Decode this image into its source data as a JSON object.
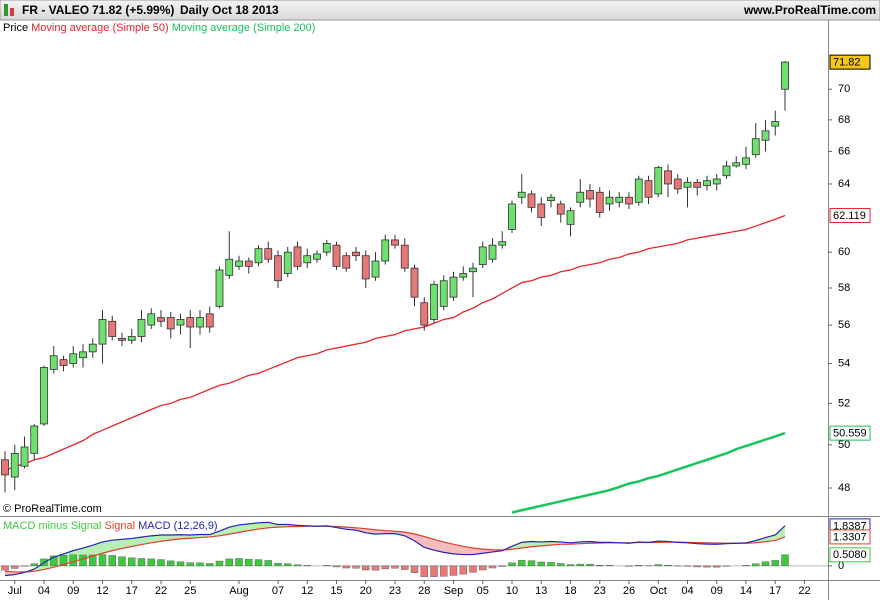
{
  "header": {
    "symbol": "FR - VALEO",
    "quote": "71.82 (+5.99%)",
    "period": "Daily",
    "date": "Oct 18 2013",
    "site": "www.ProRealTime.com"
  },
  "watermark": "© ProRealTime.com",
  "chart_data": [
    {
      "type": "candlestick",
      "legend_label": "Price",
      "log": true,
      "ylim": [
        46.79,
        74.74
      ],
      "yticks": [
        48,
        50,
        52,
        54,
        56,
        58,
        60,
        64,
        66,
        68,
        70
      ],
      "up_color": "#6ee06e",
      "down_color": "#e87878",
      "last_box_color": "#f5c518",
      "categories": [
        null,
        "Jul",
        null,
        null,
        "04",
        null,
        null,
        "09",
        null,
        null,
        "12",
        null,
        null,
        "17",
        null,
        null,
        "22",
        null,
        null,
        "25",
        null,
        null,
        null,
        null,
        "Aug",
        null,
        null,
        null,
        "07",
        null,
        null,
        "12",
        null,
        null,
        "15",
        null,
        null,
        "20",
        null,
        null,
        "23",
        null,
        null,
        "28",
        null,
        null,
        "Sep",
        null,
        null,
        "05",
        null,
        null,
        "10",
        null,
        null,
        "13",
        null,
        null,
        "18",
        null,
        null,
        "23",
        null,
        null,
        "26",
        null,
        null,
        "Oct",
        null,
        null,
        "04",
        null,
        null,
        "09",
        null,
        null,
        "14",
        null,
        null,
        "17",
        null,
        null,
        "22"
      ],
      "open": [
        49.3,
        48.5,
        49.0,
        49.6,
        51.0,
        53.7,
        54.2,
        54.0,
        54.3,
        54.6,
        55.0,
        56.2,
        55.3,
        55.2,
        55.4,
        56.0,
        56.4,
        56.4,
        56.0,
        56.4,
        55.9,
        56.6,
        57.0,
        58.7,
        59.2,
        59.5,
        59.4,
        60.2,
        59.8,
        58.8,
        60.3,
        59.4,
        59.6,
        60.0,
        60.4,
        59.8,
        60.0,
        59.8,
        58.6,
        59.5,
        60.7,
        60.4,
        59.1,
        57.2,
        56.3,
        57.0,
        57.5,
        58.6,
        58.9,
        59.3,
        59.6,
        60.4,
        61.3,
        63.2,
        63.4,
        62.8,
        63.0,
        62.8,
        61.6,
        62.9,
        63.6,
        63.5,
        62.8,
        62.9,
        63.2,
        62.9,
        64.2,
        63.4,
        64.8,
        64.3,
        63.8,
        64.1,
        63.9,
        64.0,
        64.5,
        65.1,
        65.2,
        65.8,
        66.7,
        67.6,
        70.0,
        null,
        null
      ],
      "high": [
        49.7,
        50.0,
        50.4,
        51.0,
        53.9,
        54.9,
        54.4,
        54.9,
        55.0,
        55.3,
        56.8,
        56.5,
        55.6,
        55.8,
        56.8,
        56.9,
        56.8,
        56.7,
        56.6,
        56.8,
        56.8,
        57.0,
        59.2,
        61.2,
        59.8,
        59.7,
        60.4,
        60.6,
        60.1,
        60.3,
        60.6,
        60.2,
        60.1,
        60.7,
        60.6,
        60.0,
        60.3,
        60.1,
        60.0,
        61.0,
        61.0,
        60.8,
        59.3,
        57.5,
        58.4,
        58.7,
        58.9,
        59.2,
        59.4,
        60.6,
        60.8,
        61.2,
        63.0,
        64.6,
        63.6,
        63.2,
        63.4,
        63.0,
        62.6,
        64.3,
        64.0,
        63.8,
        63.6,
        63.5,
        63.5,
        64.5,
        64.5,
        65.1,
        65.2,
        64.6,
        64.4,
        64.3,
        64.5,
        64.6,
        65.4,
        65.7,
        66.3,
        67.8,
        68.0,
        68.6,
        71.9,
        null,
        null
      ],
      "low": [
        47.8,
        47.9,
        48.9,
        49.3,
        50.9,
        53.5,
        53.6,
        53.8,
        53.8,
        54.3,
        54.0,
        55.2,
        54.9,
        55.0,
        55.1,
        55.8,
        55.9,
        55.3,
        55.5,
        54.8,
        55.5,
        55.6,
        56.9,
        58.5,
        59.0,
        58.8,
        59.2,
        59.4,
        58.0,
        58.6,
        59.0,
        59.1,
        59.4,
        59.8,
        59.0,
        58.9,
        59.5,
        58.0,
        58.4,
        59.3,
        60.2,
        58.9,
        57.0,
        55.7,
        56.1,
        56.8,
        57.3,
        58.4,
        57.5,
        59.1,
        59.4,
        60.2,
        61.1,
        62.8,
        62.3,
        61.5,
        62.6,
        61.7,
        60.9,
        62.6,
        62.6,
        62.0,
        62.4,
        62.6,
        62.5,
        62.7,
        62.8,
        63.2,
        63.2,
        63.4,
        62.6,
        63.3,
        63.6,
        63.6,
        64.3,
        65.0,
        64.9,
        65.6,
        66.0,
        67.0,
        68.6,
        null,
        null
      ],
      "close": [
        48.6,
        49.6,
        49.9,
        50.9,
        53.8,
        54.4,
        53.9,
        54.5,
        54.6,
        55.0,
        56.3,
        55.4,
        55.2,
        55.4,
        56.3,
        56.6,
        56.2,
        55.8,
        56.3,
        55.9,
        56.4,
        55.9,
        59.0,
        59.6,
        59.5,
        59.2,
        60.2,
        59.6,
        58.4,
        60.0,
        59.2,
        59.8,
        59.9,
        60.5,
        59.2,
        59.1,
        59.8,
        58.5,
        59.5,
        60.7,
        60.4,
        59.1,
        57.5,
        56.0,
        58.2,
        58.4,
        58.6,
        58.8,
        59.1,
        60.3,
        60.4,
        60.6,
        62.8,
        63.5,
        62.6,
        62.0,
        63.2,
        62.2,
        62.4,
        63.5,
        63.1,
        62.3,
        63.2,
        63.2,
        62.8,
        64.3,
        63.2,
        65.0,
        64.0,
        63.7,
        64.1,
        63.8,
        64.2,
        64.3,
        65.1,
        65.3,
        65.6,
        66.8,
        67.3,
        67.9,
        71.82,
        null,
        null
      ],
      "series": [
        {
          "name": "Moving average (Simple 50)",
          "color": "#e8262b",
          "values": [
            48.8,
            49.0,
            49.1,
            49.3,
            49.4,
            49.6,
            49.8,
            50.0,
            50.2,
            50.5,
            50.7,
            50.9,
            51.1,
            51.3,
            51.5,
            51.7,
            51.9,
            52.0,
            52.2,
            52.3,
            52.5,
            52.7,
            52.9,
            53.0,
            53.2,
            53.4,
            53.5,
            53.7,
            53.9,
            54.1,
            54.3,
            54.4,
            54.5,
            54.7,
            54.8,
            54.9,
            55.0,
            55.1,
            55.3,
            55.4,
            55.5,
            55.7,
            55.8,
            55.9,
            56.1,
            56.3,
            56.4,
            56.7,
            56.9,
            57.2,
            57.4,
            57.7,
            58.0,
            58.3,
            58.4,
            58.6,
            58.7,
            58.9,
            59.0,
            59.2,
            59.3,
            59.4,
            59.6,
            59.7,
            59.9,
            60.0,
            60.2,
            60.3,
            60.4,
            60.5,
            60.7,
            60.8,
            60.9,
            61.0,
            61.1,
            61.2,
            61.3,
            61.5,
            61.7,
            61.9,
            62.119,
            null,
            null
          ]
        },
        {
          "name": "Moving average (Simple 200)",
          "color": "#17c45c",
          "values": [
            null,
            null,
            null,
            null,
            null,
            null,
            null,
            null,
            null,
            null,
            null,
            null,
            null,
            null,
            null,
            null,
            null,
            null,
            null,
            null,
            null,
            null,
            null,
            null,
            null,
            null,
            null,
            null,
            null,
            null,
            null,
            null,
            null,
            null,
            null,
            null,
            null,
            null,
            null,
            null,
            null,
            null,
            null,
            null,
            null,
            null,
            null,
            null,
            null,
            null,
            null,
            null,
            46.9,
            47.0,
            47.1,
            47.2,
            47.3,
            47.4,
            47.5,
            47.6,
            47.7,
            47.8,
            47.9,
            48.05,
            48.2,
            48.3,
            48.45,
            48.55,
            48.7,
            48.85,
            49.0,
            49.15,
            49.3,
            49.45,
            49.6,
            49.8,
            49.95,
            50.1,
            50.25,
            50.4,
            50.559,
            null,
            null
          ]
        }
      ]
    },
    {
      "type": "macd",
      "ylim": [
        -0.65,
        2.2
      ],
      "yticks": [
        0
      ],
      "fill_up_color": "#b9efb2",
      "fill_down_color": "#f4bcbc",
      "down_color": "#e87878",
      "series": [
        {
          "name": "MACD minus Signal",
          "color": "#3ec83e",
          "value_label": "0.5080",
          "values": [
            -0.2,
            -0.12,
            -0.02,
            0.1,
            0.32,
            0.46,
            0.49,
            0.51,
            0.5,
            0.5,
            0.52,
            0.48,
            0.42,
            0.37,
            0.34,
            0.32,
            0.29,
            0.23,
            0.19,
            0.15,
            0.14,
            0.11,
            0.22,
            0.32,
            0.34,
            0.31,
            0.29,
            0.25,
            0.12,
            0.1,
            0.05,
            0.02,
            0.0,
            0.02,
            -0.05,
            -0.1,
            -0.11,
            -0.19,
            -0.2,
            -0.14,
            -0.11,
            -0.17,
            -0.32,
            -0.5,
            -0.5,
            -0.48,
            -0.44,
            -0.38,
            -0.3,
            -0.19,
            -0.1,
            -0.03,
            0.14,
            0.26,
            0.24,
            0.18,
            0.16,
            0.11,
            0.06,
            0.08,
            0.08,
            0.03,
            0.02,
            0.0,
            -0.02,
            0.03,
            0.01,
            0.06,
            0.03,
            -0.01,
            -0.02,
            -0.05,
            -0.06,
            -0.06,
            -0.02,
            0.0,
            0.02,
            0.1,
            0.19,
            0.25,
            0.508,
            null,
            null
          ]
        },
        {
          "name": "Signal",
          "color": "#e0402a",
          "values": [
            -0.25,
            -0.28,
            -0.28,
            -0.25,
            -0.17,
            -0.06,
            0.06,
            0.19,
            0.32,
            0.45,
            0.58,
            0.7,
            0.8,
            0.89,
            0.98,
            1.06,
            1.13,
            1.19,
            1.24,
            1.27,
            1.3,
            1.33,
            1.38,
            1.46,
            1.54,
            1.62,
            1.69,
            1.75,
            1.78,
            1.8,
            1.81,
            1.82,
            1.82,
            1.82,
            1.81,
            1.78,
            1.75,
            1.71,
            1.66,
            1.62,
            1.59,
            1.55,
            1.47,
            1.35,
            1.22,
            1.1,
            0.99,
            0.9,
            0.82,
            0.77,
            0.74,
            0.73,
            0.76,
            0.82,
            0.88,
            0.92,
            0.96,
            0.99,
            1.0,
            1.02,
            1.04,
            1.05,
            1.06,
            1.06,
            1.06,
            1.07,
            1.07,
            1.08,
            1.09,
            1.09,
            1.08,
            1.07,
            1.06,
            1.05,
            1.04,
            1.04,
            1.04,
            1.06,
            1.11,
            1.17,
            1.3307,
            null,
            null
          ]
        },
        {
          "name": "MACD (12,26,9)",
          "color": "#2424b8",
          "values": [
            -0.45,
            -0.4,
            -0.3,
            -0.15,
            0.15,
            0.4,
            0.55,
            0.7,
            0.82,
            0.95,
            1.1,
            1.18,
            1.22,
            1.26,
            1.32,
            1.38,
            1.42,
            1.42,
            1.43,
            1.42,
            1.44,
            1.44,
            1.6,
            1.78,
            1.88,
            1.93,
            1.98,
            2.0,
            1.9,
            1.9,
            1.86,
            1.84,
            1.82,
            1.84,
            1.76,
            1.68,
            1.64,
            1.52,
            1.46,
            1.48,
            1.48,
            1.38,
            1.15,
            0.85,
            0.72,
            0.62,
            0.55,
            0.52,
            0.52,
            0.58,
            0.64,
            0.7,
            0.9,
            1.08,
            1.12,
            1.1,
            1.12,
            1.1,
            1.06,
            1.1,
            1.12,
            1.08,
            1.08,
            1.06,
            1.04,
            1.1,
            1.08,
            1.14,
            1.12,
            1.08,
            1.06,
            1.02,
            1.0,
            0.99,
            1.02,
            1.04,
            1.06,
            1.16,
            1.3,
            1.42,
            1.8387,
            null,
            null
          ]
        }
      ]
    }
  ]
}
